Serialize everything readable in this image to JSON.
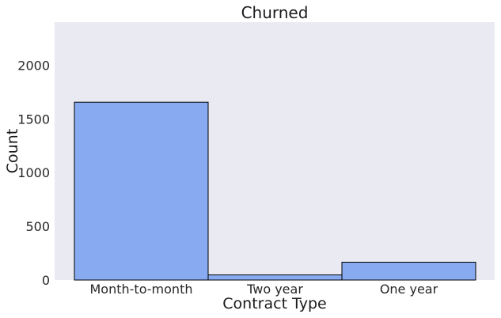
{
  "chart_data": {
    "type": "bar",
    "title": "Churned",
    "xlabel": "Contract Type",
    "ylabel": "Count",
    "categories": [
      "Month-to-month",
      "Two year",
      "One year"
    ],
    "values": [
      1655,
      48,
      166
    ],
    "ylim": [
      0,
      2400
    ],
    "yticks": [
      0,
      500,
      1000,
      1500,
      2000
    ],
    "grid": false,
    "colors": {
      "bar_fill": "#87aaf0",
      "bar_edge": "#000000",
      "plot_background": "#eaeaf2"
    }
  }
}
